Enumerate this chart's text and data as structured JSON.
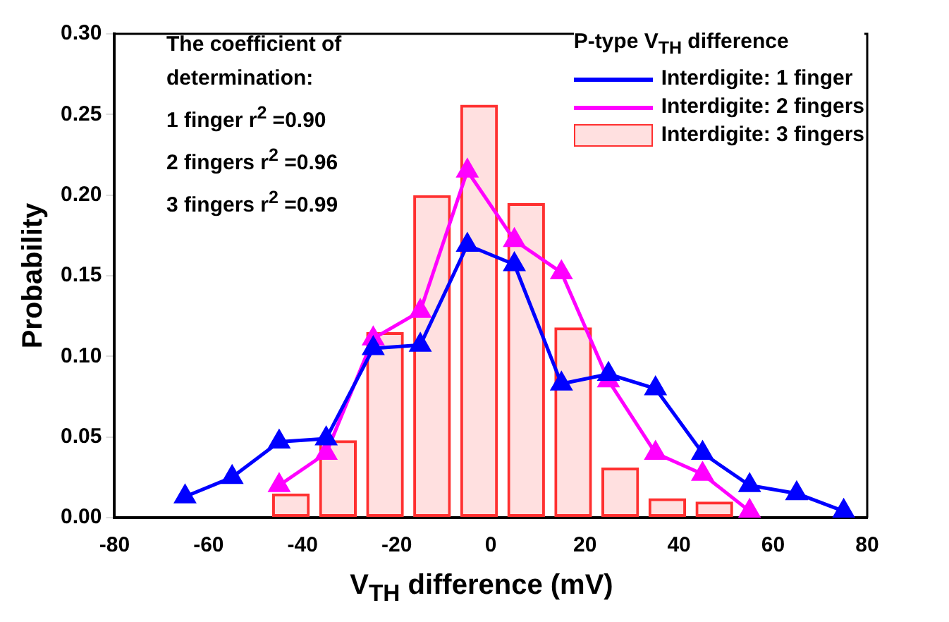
{
  "chart_data": {
    "type": "line",
    "xlabel": "V$_{TH}$ difference (mV)",
    "ylabel": "Probability",
    "legend_title": "P-type V$_{TH}$ difference",
    "annotations": [
      "The coefficient of determination:",
      "1 finger   r$^{2}$ =0.90",
      "2 fingers r$^{2}$ =0.96",
      "3 fingers r$^{2}$ =0.99"
    ],
    "series": [
      {
        "name": "Interdigite: 1 finger",
        "color": "#0000ff",
        "marker": "triangle",
        "x": [
          -65,
          -55,
          -45,
          -35,
          -25,
          -15,
          -5,
          5,
          15,
          25,
          35,
          45,
          55,
          65,
          75
        ],
        "values": [
          0.013,
          0.025,
          0.047,
          0.049,
          0.105,
          0.107,
          0.169,
          0.157,
          0.083,
          0.089,
          0.08,
          0.04,
          0.02,
          0.015,
          0.004
        ]
      },
      {
        "name": "Interdigite: 2 fingers",
        "color": "#ff00ff",
        "marker": "triangle",
        "x": [
          -45,
          -35,
          -25,
          -15,
          -5,
          5,
          15,
          25,
          35,
          45,
          55
        ],
        "values": [
          0.02,
          0.04,
          0.111,
          0.128,
          0.215,
          0.172,
          0.152,
          0.085,
          0.04,
          0.027,
          0.004
        ]
      },
      {
        "name": "Interdigite: 3 fingers",
        "type": "bar",
        "color": "#ff3030",
        "x": [
          -42.5,
          -32.5,
          -22.5,
          -12.5,
          -2.5,
          7.5,
          17.5,
          27.5,
          37.5,
          47.5
        ],
        "values": [
          0.015,
          0.048,
          0.115,
          0.2,
          0.256,
          0.195,
          0.118,
          0.031,
          0.012,
          0.01
        ]
      }
    ],
    "xlim": [
      -80,
      80
    ],
    "xticks": [
      -80,
      -60,
      -40,
      -20,
      0,
      20,
      40,
      60,
      80
    ],
    "ylim": [
      0,
      0.3
    ],
    "yticks": [
      {
        "value": 0,
        "label": "0.00"
      },
      {
        "value": 0.05,
        "label": "0.05"
      },
      {
        "value": 0.1,
        "label": "0.10"
      },
      {
        "value": 0.15,
        "label": "0.15"
      },
      {
        "value": 0.2,
        "label": "0.20"
      },
      {
        "value": 0.25,
        "label": "0.25"
      },
      {
        "value": 0.3,
        "label": "0.30"
      }
    ],
    "grid": false,
    "legend": "top right"
  }
}
